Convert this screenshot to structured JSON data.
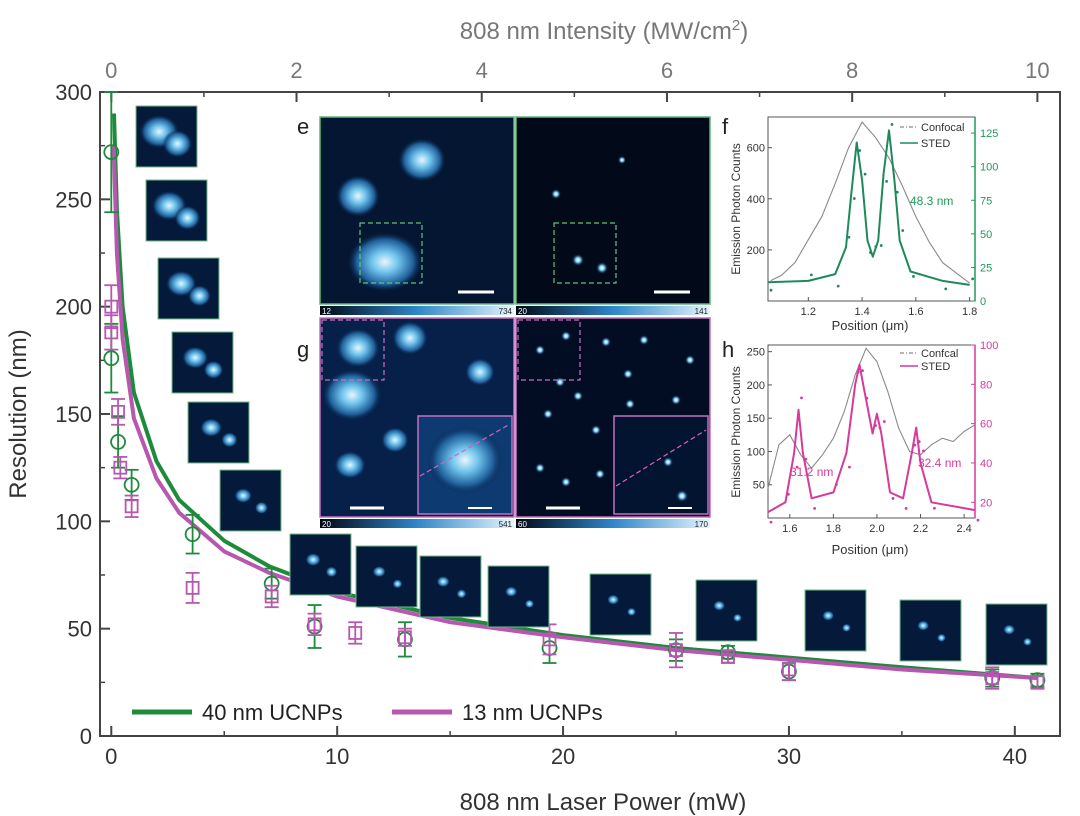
{
  "chart_data": [
    {
      "id": "main",
      "type": "scatter",
      "title": "",
      "xlabel": "808 nm Laser Power (mW)",
      "ylabel": "Resolution (nm)",
      "x2label_main": "808 nm Intensity (MW/cm",
      "x2label_sup": "2",
      "x2label_tail": ")",
      "xlim": [
        -0.5,
        42
      ],
      "ylim": [
        0,
        300
      ],
      "x2lim": [
        -0.122,
        10.244
      ],
      "xticks": [
        0,
        10,
        20,
        30,
        40
      ],
      "yticks": [
        0,
        50,
        100,
        150,
        200,
        250,
        300
      ],
      "x2ticks": [
        0,
        2,
        4,
        6,
        8,
        10
      ],
      "legend_position": "bottom-left",
      "series": [
        {
          "name": "40 nm UCNPs",
          "marker": "circle",
          "color": "#1e8a3c",
          "points": [
            {
              "x": 0,
              "y": 272,
              "err": 28
            },
            {
              "x": 0,
              "y": 176,
              "err": 16
            },
            {
              "x": 0.3,
              "y": 137,
              "err": 12
            },
            {
              "x": 0.9,
              "y": 117,
              "err": 7
            },
            {
              "x": 3.6,
              "y": 94,
              "err": 9
            },
            {
              "x": 7.1,
              "y": 71,
              "err": 7
            },
            {
              "x": 9.0,
              "y": 51,
              "err": 10
            },
            {
              "x": 13.0,
              "y": 45,
              "err": 8
            },
            {
              "x": 19.4,
              "y": 41,
              "err": 7
            },
            {
              "x": 25.0,
              "y": 40,
              "err": 5
            },
            {
              "x": 27.3,
              "y": 39,
              "err": 3
            },
            {
              "x": 30.0,
              "y": 30,
              "err": 4
            },
            {
              "x": 39.0,
              "y": 27,
              "err": 4
            },
            {
              "x": 41.0,
              "y": 26,
              "err": 3
            }
          ],
          "fit": [
            [
              0.12,
              290
            ],
            [
              0.25,
              245
            ],
            [
              0.5,
              200
            ],
            [
              1,
              160
            ],
            [
              2,
              128
            ],
            [
              3,
              110
            ],
            [
              5,
              91
            ],
            [
              7,
              79
            ],
            [
              10,
              67
            ],
            [
              15,
              55
            ],
            [
              20,
              47
            ],
            [
              25,
              41
            ],
            [
              30,
              36.5
            ],
            [
              35,
              32
            ],
            [
              41,
              27
            ]
          ]
        },
        {
          "name": "13 nm UCNPs",
          "marker": "square",
          "color": "#b757b0",
          "points": [
            {
              "x": 0,
              "y": 200,
              "err": 10
            },
            {
              "x": 0,
              "y": 188,
              "err": 8
            },
            {
              "x": 0.3,
              "y": 151,
              "err": 6
            },
            {
              "x": 0.4,
              "y": 125,
              "err": 5
            },
            {
              "x": 0.9,
              "y": 107,
              "err": 5
            },
            {
              "x": 3.6,
              "y": 69,
              "err": 7
            },
            {
              "x": 7.1,
              "y": 65,
              "err": 5
            },
            {
              "x": 9.0,
              "y": 52,
              "err": 5
            },
            {
              "x": 10.8,
              "y": 48,
              "err": 5
            },
            {
              "x": 13.0,
              "y": 46,
              "err": 4
            },
            {
              "x": 19.4,
              "y": 45,
              "err": 7
            },
            {
              "x": 25.0,
              "y": 40,
              "err": 8
            },
            {
              "x": 27.3,
              "y": 37,
              "err": 3
            },
            {
              "x": 30.0,
              "y": 31,
              "err": 5
            },
            {
              "x": 39.0,
              "y": 27,
              "err": 5
            },
            {
              "x": 41.0,
              "y": 25,
              "err": 3
            }
          ],
          "fit": [
            [
              0.1,
              275
            ],
            [
              0.25,
              225
            ],
            [
              0.5,
              185
            ],
            [
              1,
              148
            ],
            [
              2,
              120
            ],
            [
              3,
              104
            ],
            [
              5,
              86
            ],
            [
              7,
              76
            ],
            [
              10,
              65
            ],
            [
              15,
              53
            ],
            [
              20,
              46
            ],
            [
              25,
              40
            ],
            [
              30,
              35.5
            ],
            [
              35,
              31
            ],
            [
              41,
              27
            ]
          ]
        }
      ]
    },
    {
      "id": "panel-f",
      "type": "line",
      "panel_label": "f",
      "xlabel": "Position (μm)",
      "ylabel": "Emission Photon Counts",
      "xlim": [
        1.05,
        1.82
      ],
      "ylim": [
        0,
        720
      ],
      "y2lim": [
        0,
        137
      ],
      "xticks": [
        1.2,
        1.4,
        1.6,
        1.8
      ],
      "xtick_labels": [
        "1.2",
        "1.4",
        "1.6",
        "1.8"
      ],
      "yticks": [
        200,
        400,
        600
      ],
      "y2ticks": [
        0,
        25,
        50,
        75,
        100,
        125
      ],
      "legend_position": "top-right",
      "annotation": "48.3 nm",
      "series": [
        {
          "name": "Confocal",
          "style": "dash-dot",
          "color": "#8a8a8a",
          "x": [
            1.06,
            1.1,
            1.15,
            1.2,
            1.25,
            1.3,
            1.35,
            1.4,
            1.45,
            1.5,
            1.55,
            1.6,
            1.65,
            1.7,
            1.75,
            1.8
          ],
          "y": [
            80,
            100,
            150,
            240,
            330,
            460,
            600,
            700,
            640,
            560,
            450,
            330,
            230,
            150,
            110,
            70
          ]
        },
        {
          "name": "STED",
          "style": "solid",
          "color": "#1e8a5c",
          "x": [
            1.05,
            1.2,
            1.3,
            1.34,
            1.36,
            1.38,
            1.4,
            1.42,
            1.44,
            1.46,
            1.48,
            1.5,
            1.52,
            1.54,
            1.58,
            1.7,
            1.8
          ],
          "y": [
            14,
            15,
            20,
            40,
            80,
            118,
            90,
            45,
            33,
            45,
            95,
            127,
            90,
            45,
            22,
            15,
            12
          ]
        }
      ]
    },
    {
      "id": "panel-h",
      "type": "line",
      "panel_label": "h",
      "xlabel": "Position (μm)",
      "ylabel": "Emission Photon Counts",
      "xlim": [
        1.5,
        2.45
      ],
      "ylim": [
        0,
        260
      ],
      "y2lim": [
        12,
        100
      ],
      "xticks": [
        1.6,
        1.8,
        2.0,
        2.2,
        2.4
      ],
      "xtick_labels": [
        "1.6",
        "1.8",
        "2.0",
        "2.2",
        "2.4"
      ],
      "yticks": [
        50,
        100,
        150,
        200,
        250
      ],
      "y2ticks": [
        20,
        40,
        60,
        80,
        100
      ],
      "legend_position": "top-right",
      "legend_label_confocal": "Confcal",
      "annotations": [
        "31.2 nm",
        "32.4 nm"
      ],
      "series": [
        {
          "name": "Confcal",
          "style": "dash-dot",
          "color": "#8a8a8a",
          "x": [
            1.5,
            1.55,
            1.6,
            1.65,
            1.7,
            1.75,
            1.8,
            1.85,
            1.9,
            1.95,
            2.0,
            2.05,
            2.1,
            2.15,
            2.2,
            2.25,
            2.3,
            2.35,
            2.4,
            2.45
          ],
          "y": [
            45,
            110,
            125,
            95,
            75,
            95,
            120,
            160,
            215,
            255,
            235,
            190,
            135,
            100,
            95,
            110,
            120,
            115,
            130,
            140
          ]
        },
        {
          "name": "STED",
          "style": "solid",
          "color": "#d63a9a",
          "x": [
            1.5,
            1.58,
            1.62,
            1.64,
            1.66,
            1.7,
            1.8,
            1.86,
            1.9,
            1.92,
            1.94,
            1.98,
            2.0,
            2.02,
            2.06,
            2.12,
            2.16,
            2.18,
            2.2,
            2.25,
            2.45
          ],
          "y": [
            15,
            20,
            45,
            67,
            45,
            22,
            25,
            45,
            80,
            90,
            78,
            55,
            65,
            55,
            25,
            22,
            45,
            58,
            40,
            20,
            16
          ]
        }
      ]
    }
  ],
  "panels": {
    "e": {
      "label": "e",
      "left_scale": [
        "12",
        "734"
      ],
      "right_scale": [
        "20",
        "141"
      ]
    },
    "g": {
      "label": "g",
      "left_scale": [
        "20",
        "541"
      ],
      "right_scale": [
        "60",
        "170"
      ]
    }
  }
}
